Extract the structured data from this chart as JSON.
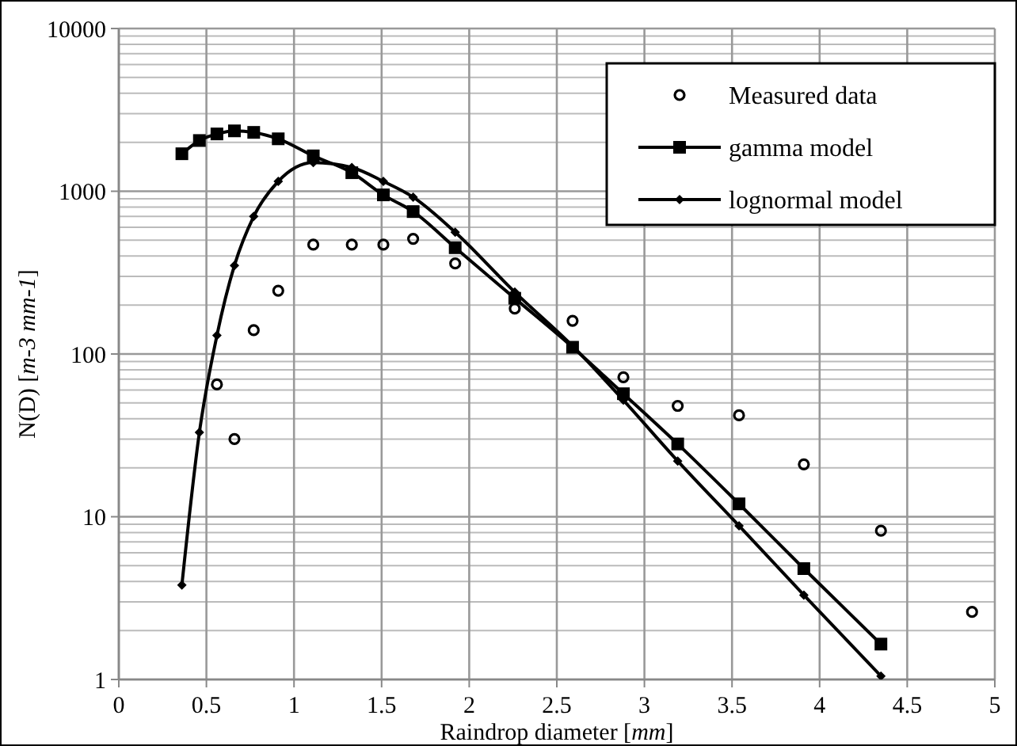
{
  "chart_data": {
    "type": "line",
    "xlabel": "Raindrop diameter [mm]",
    "ylabel": "N(D) [m-3 mm-1]",
    "xlim": [
      0,
      5
    ],
    "xticks": [
      0,
      0.5,
      1,
      1.5,
      2,
      2.5,
      3,
      3.5,
      4,
      4.5,
      5
    ],
    "ylim": [
      1,
      10000
    ],
    "yticks": [
      1,
      10,
      100,
      1000,
      10000
    ],
    "log": "y",
    "grid": true,
    "legend": "top right",
    "series": [
      {
        "name": "Measured data",
        "type": "scatter",
        "color": "#000000",
        "marker": "circle",
        "x": [
          0.56,
          0.66,
          0.77,
          0.91,
          1.11,
          1.33,
          1.51,
          1.68,
          1.92,
          2.26,
          2.59,
          2.88,
          3.19,
          3.54,
          3.91,
          4.35,
          4.87
        ],
        "values": [
          65,
          30,
          140,
          245,
          470,
          470,
          470,
          510,
          360,
          190,
          160,
          72,
          48,
          42,
          21,
          8.2,
          2.6
        ]
      },
      {
        "name": "gamma model",
        "type": "line",
        "color": "#000000",
        "marker": "square",
        "x": [
          0.36,
          0.46,
          0.56,
          0.66,
          0.77,
          0.91,
          1.11,
          1.33,
          1.51,
          1.68,
          1.92,
          2.26,
          2.59,
          2.88,
          3.19,
          3.54,
          3.91,
          4.35
        ],
        "values": [
          1700,
          2050,
          2250,
          2350,
          2300,
          2100,
          1650,
          1300,
          950,
          750,
          450,
          220,
          110,
          57,
          28,
          12,
          4.8,
          1.65
        ]
      },
      {
        "name": "lognormal model",
        "type": "line",
        "color": "#000000",
        "marker": "diamond",
        "x": [
          0.36,
          0.46,
          0.56,
          0.66,
          0.77,
          0.91,
          1.11,
          1.33,
          1.51,
          1.68,
          1.92,
          2.26,
          2.59,
          2.88,
          3.19,
          3.54,
          3.91,
          4.35
        ],
        "values": [
          3.8,
          33,
          130,
          350,
          700,
          1150,
          1500,
          1400,
          1150,
          920,
          560,
          240,
          112,
          52,
          22,
          8.8,
          3.3,
          1.05
        ]
      }
    ]
  }
}
